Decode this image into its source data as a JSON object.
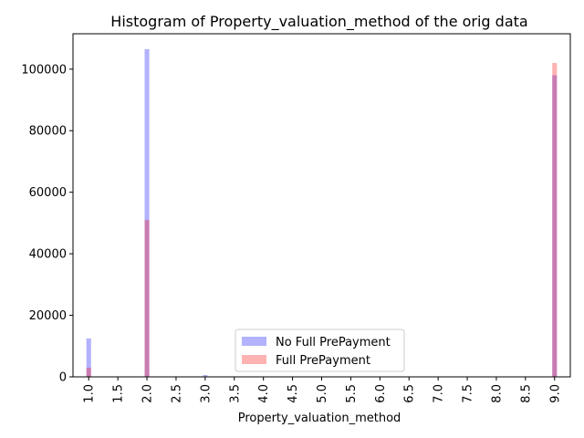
{
  "chart_data": {
    "type": "bar",
    "title": "Histogram of Property_valuation_method of the orig data",
    "xlabel": "Property_valuation_method",
    "ylabel": "",
    "xlim": [
      0.73,
      9.27
    ],
    "ylim": [
      0,
      111500
    ],
    "bar_width": 0.08,
    "xticks": [
      "1.0",
      "1.5",
      "2.0",
      "2.5",
      "3.0",
      "3.5",
      "4.0",
      "4.5",
      "5.0",
      "5.5",
      "6.0",
      "6.5",
      "7.0",
      "7.5",
      "8.0",
      "8.5",
      "9.0"
    ],
    "yticks": [
      0,
      20000,
      40000,
      60000,
      80000,
      100000
    ],
    "yticks_labels": [
      "0",
      "20000",
      "40000",
      "60000",
      "80000",
      "100000"
    ],
    "legend_position": "lower-center",
    "series": [
      {
        "name": "No Full PrePayment",
        "color": "#0000ff",
        "opacity": 0.3,
        "x": [
          1.0,
          2.0,
          3.0,
          9.0
        ],
        "values": [
          12500,
          106500,
          600,
          98000
        ]
      },
      {
        "name": "Full PrePayment",
        "color": "#ff0000",
        "opacity": 0.3,
        "x": [
          1.0,
          2.0,
          3.0,
          9.0
        ],
        "values": [
          3000,
          51000,
          150,
          102000
        ]
      }
    ]
  }
}
